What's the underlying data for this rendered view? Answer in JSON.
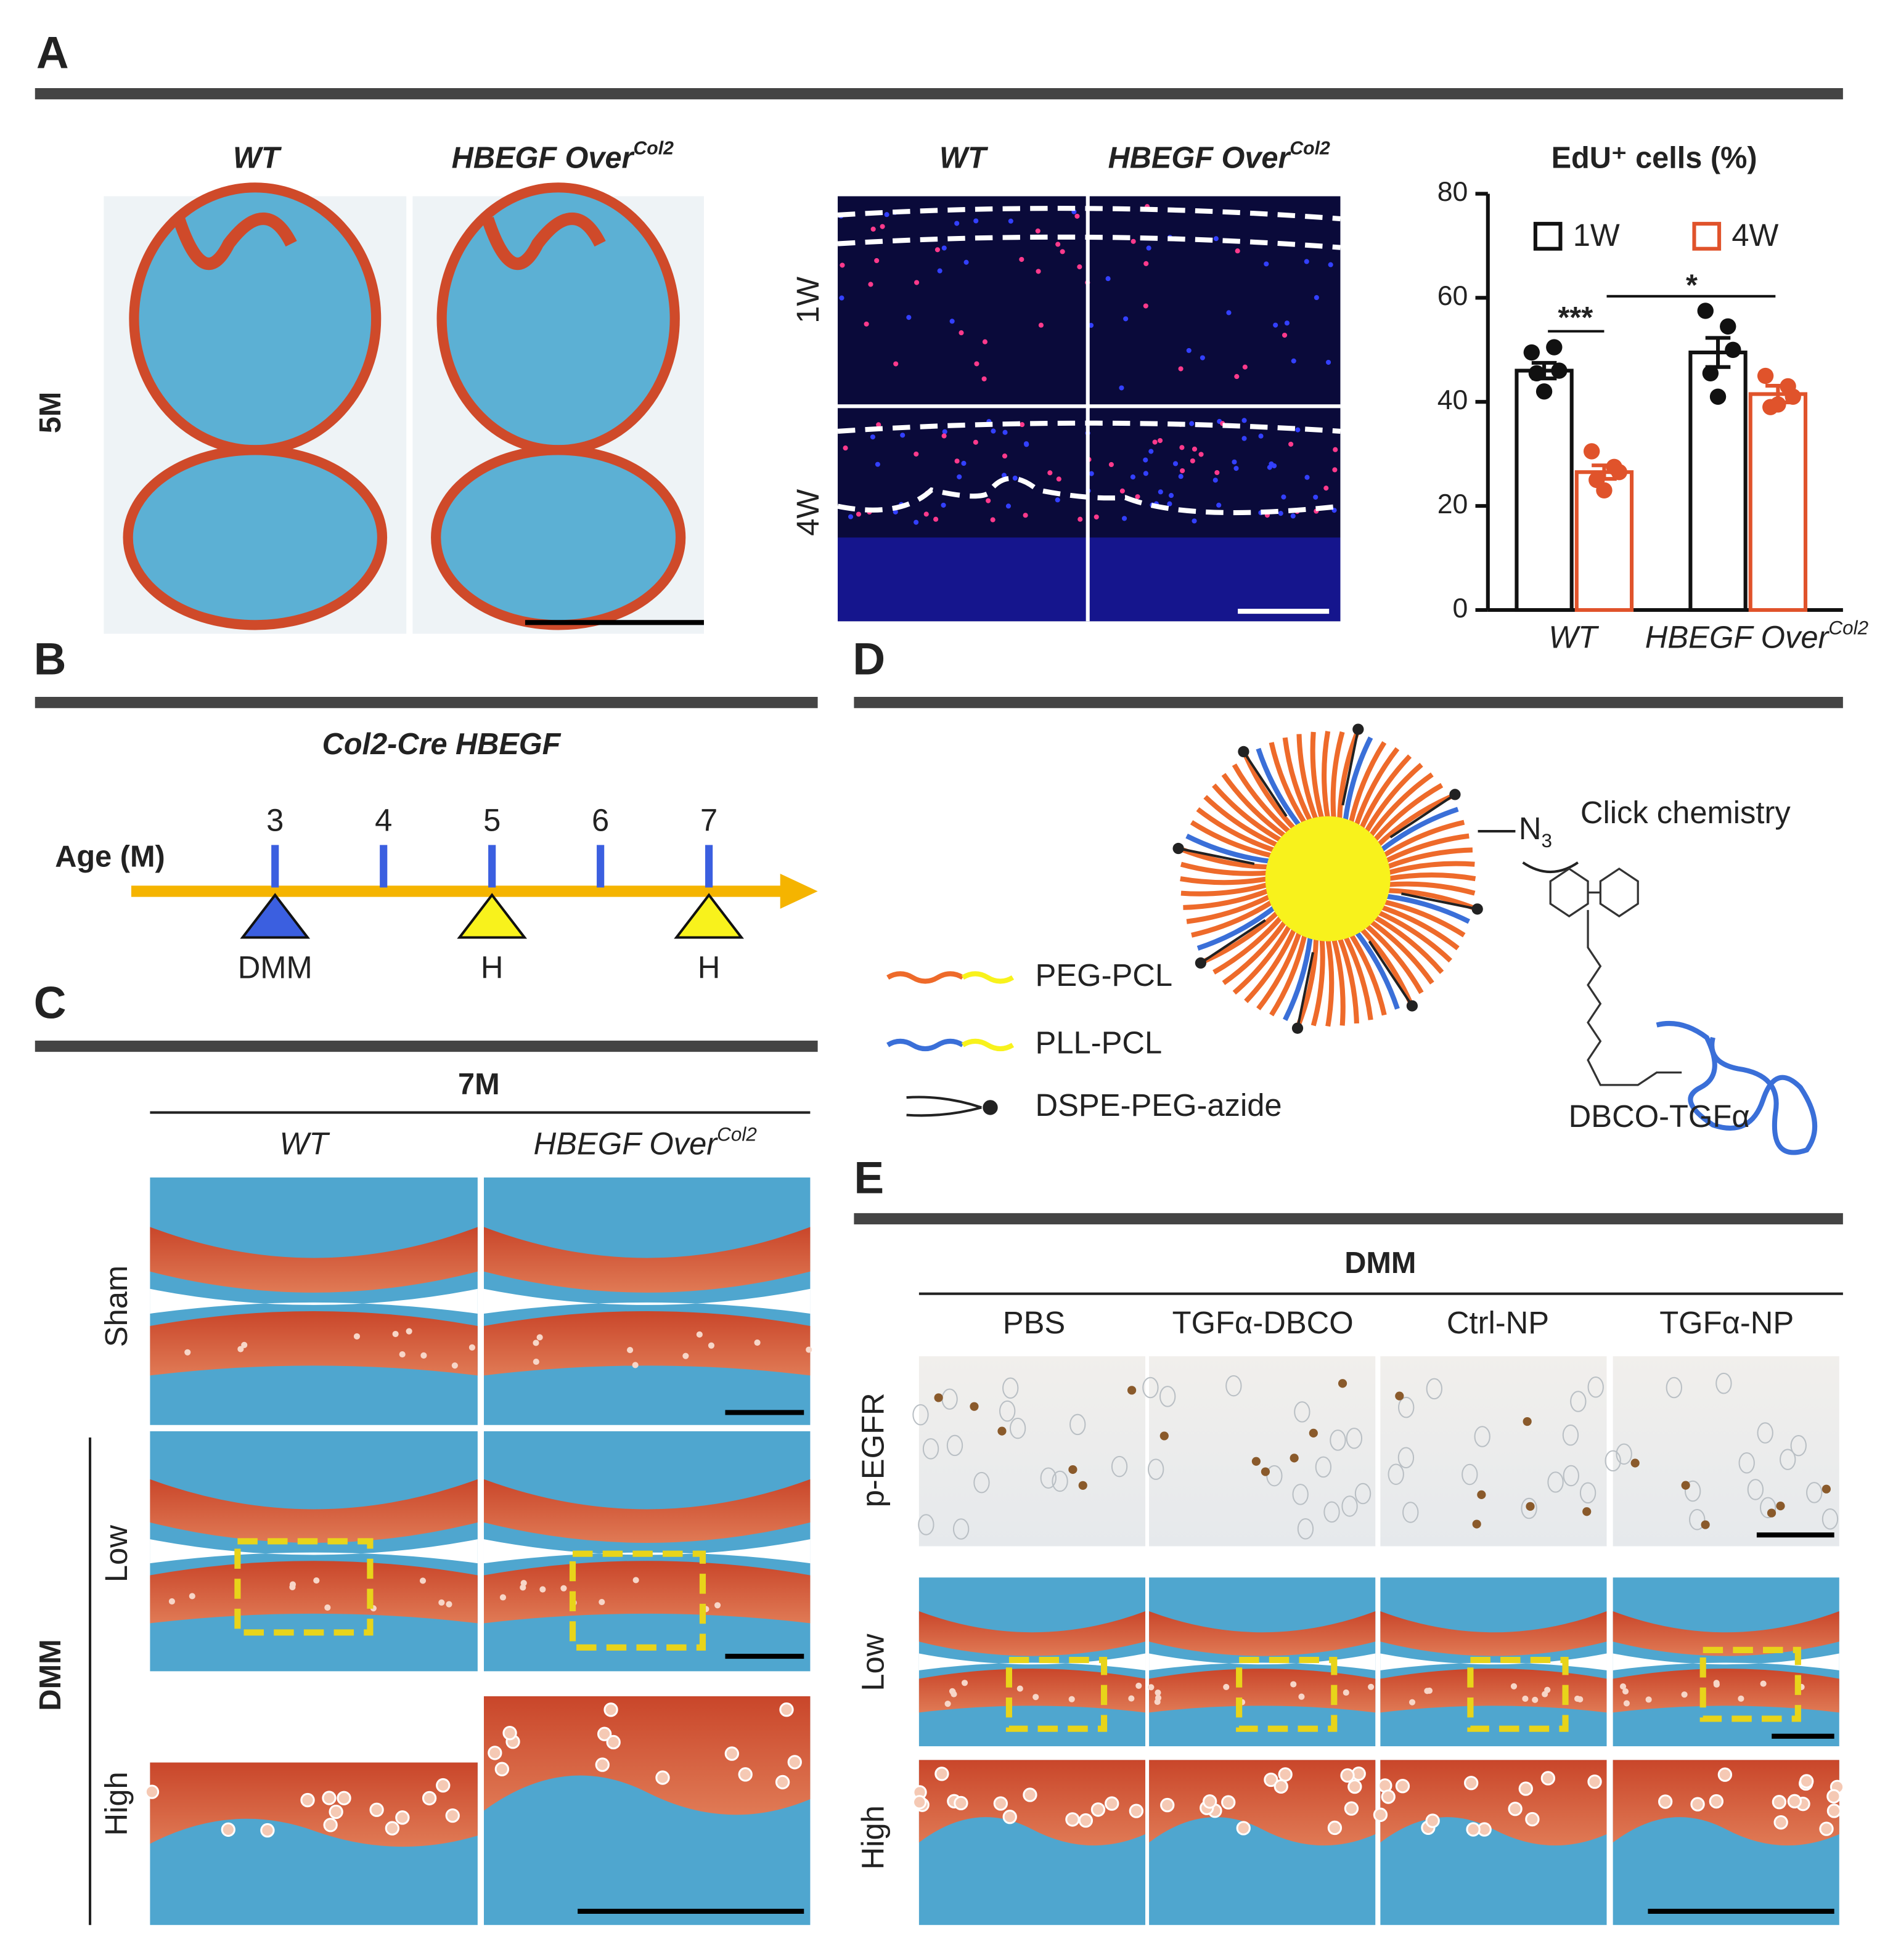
{
  "panel_A": {
    "letter": "A",
    "histology": {
      "headers": [
        {
          "text": "WT"
        },
        {
          "text": "HBEGF Over",
          "sup": "Col2"
        }
      ],
      "row_label": "5M"
    },
    "edu_imaging": {
      "headers": [
        {
          "text": "WT"
        },
        {
          "text": "HBEGF Over",
          "sup": "Col2"
        }
      ],
      "row_labels": [
        "1W",
        "4W"
      ]
    }
  },
  "panel_B": {
    "letter": "B",
    "title": "Col2-Cre HBEGF",
    "axis_label": "Age (M)",
    "ticks": [
      3,
      4,
      5,
      6,
      7
    ],
    "events": [
      {
        "age": 3,
        "label": "DMM",
        "color": "#3b5fe0"
      },
      {
        "age": 5,
        "label": "H",
        "color": "#f8f21c"
      },
      {
        "age": 7,
        "label": "H",
        "color": "#f8f21c"
      }
    ]
  },
  "panel_C": {
    "letter": "C",
    "title": "7M",
    "headers": [
      {
        "text": "WT"
      },
      {
        "text": "HBEGF Over",
        "sup": "Col2"
      }
    ],
    "row_labels": [
      "Sham",
      "Low",
      "High"
    ],
    "group_label": "DMM"
  },
  "panel_D": {
    "letter": "D",
    "legend": [
      "PEG-PCL",
      "PLL-PCL",
      "DSPE-PEG-azide"
    ],
    "azide": {
      "text": "N",
      "sub": "3"
    },
    "reaction_label": "Click chemistry",
    "ligand_label": "DBCO-TGFα"
  },
  "panel_E": {
    "letter": "E",
    "title": "DMM",
    "headers": [
      "PBS",
      "TGFα-DBCO",
      "Ctrl-NP",
      "TGFα-NP"
    ],
    "row_labels": [
      "p-EGFR",
      "Low",
      "High"
    ]
  },
  "chart_data": {
    "type": "bar",
    "title": "EdU⁺ cells (%)",
    "categories": [
      {
        "text": "WT"
      },
      {
        "text": "HBEGF Over",
        "sup": "Col2"
      }
    ],
    "series": [
      {
        "name": "1W",
        "color": "#111111",
        "values": [
          46,
          49.5
        ],
        "errors": [
          1.5,
          2.8
        ],
        "points": [
          [
            49.5,
            50.5,
            46,
            45.5,
            42
          ],
          [
            57.5,
            54.5,
            50,
            45.5,
            41
          ]
        ]
      },
      {
        "name": "4W",
        "color": "#e0532b",
        "values": [
          26.5,
          41.5
        ],
        "errors": [
          1.3,
          1.6
        ],
        "points": [
          [
            30.5,
            27.5,
            26.5,
            25,
            23
          ],
          [
            45,
            43,
            41,
            39,
            39.5
          ]
        ]
      }
    ],
    "ylim": [
      0,
      80
    ],
    "yticks": [
      0,
      20,
      40,
      60,
      80
    ],
    "annotations": [
      {
        "text": "***"
      },
      {
        "text": "*"
      }
    ]
  }
}
